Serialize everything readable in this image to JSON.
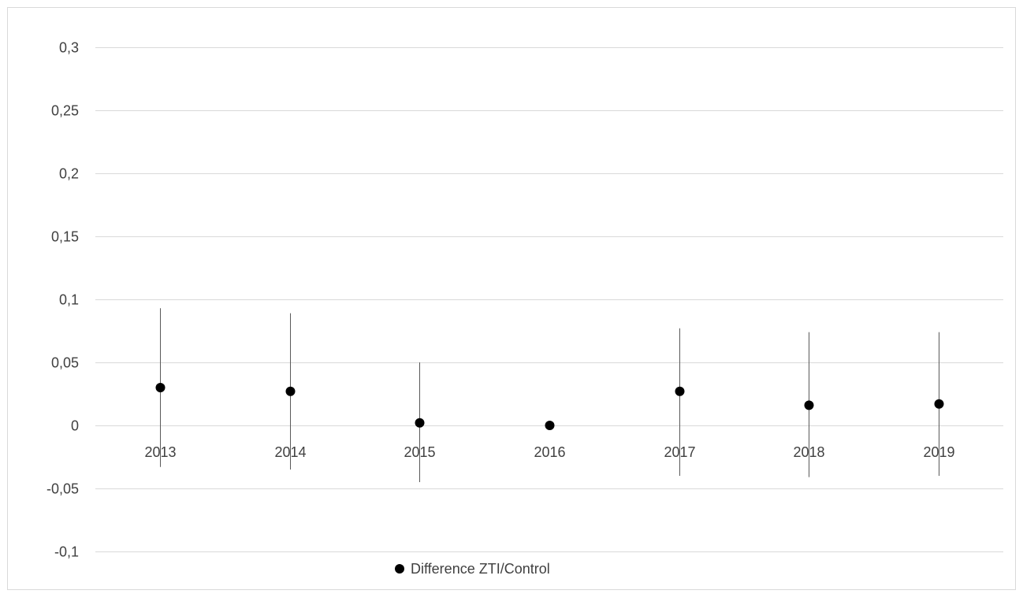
{
  "chart_data": {
    "type": "scatter",
    "title": "",
    "xlabel": "",
    "ylabel": "",
    "categories": [
      "2013",
      "2014",
      "2015",
      "2016",
      "2017",
      "2018",
      "2019"
    ],
    "series": [
      {
        "name": "Difference ZTI/Control",
        "color": "#000000",
        "values": [
          0.03,
          0.027,
          0.002,
          0.0,
          0.027,
          0.016,
          0.017
        ],
        "error_low": [
          -0.033,
          -0.035,
          -0.045,
          0.0,
          -0.04,
          -0.041,
          -0.04
        ],
        "error_high": [
          0.093,
          0.089,
          0.05,
          0.0,
          0.077,
          0.074,
          0.074
        ]
      }
    ],
    "ylim": [
      -0.1,
      0.3
    ],
    "yticks": [
      -0.1,
      -0.05,
      0,
      0.05,
      0.1,
      0.15,
      0.2,
      0.25,
      0.3
    ],
    "ytick_labels": [
      "-0,1",
      "-0,05",
      "0",
      "0,05",
      "0,1",
      "0,15",
      "0,2",
      "0,25",
      "0,3"
    ],
    "grid": true,
    "legend_position": "bottom"
  }
}
